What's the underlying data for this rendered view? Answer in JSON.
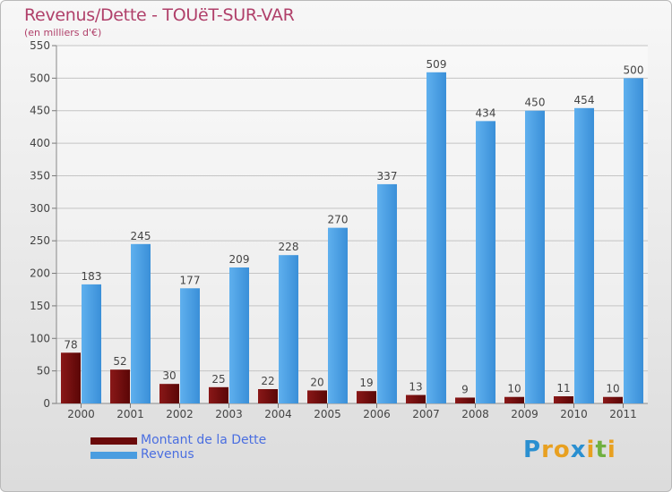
{
  "title": "Revenus/Dette - TOUëT-SUR-VAR",
  "subtitle": "(en milliers d'€)",
  "colors": {
    "dette": "#6b0a0a",
    "revenus": "#4a9de0",
    "title": "#b0406a",
    "legend_text": "#4a6ee0"
  },
  "legend": {
    "items": [
      {
        "label": "Montant de la Dette",
        "color": "#6b0a0a"
      },
      {
        "label": "Revenus",
        "color": "#4a9de0"
      }
    ]
  },
  "logo": {
    "letters": [
      "P",
      "r",
      "o",
      "x",
      "i",
      "t",
      "i"
    ],
    "colors": [
      "#2a8fd0",
      "#e8a020",
      "#e8a020",
      "#2a8fd0",
      "#e8a020",
      "#70b040",
      "#e8a020"
    ]
  },
  "chart_data": {
    "type": "bar",
    "categories": [
      "2000",
      "2001",
      "2002",
      "2003",
      "2004",
      "2005",
      "2006",
      "2007",
      "2008",
      "2009",
      "2010",
      "2011"
    ],
    "series": [
      {
        "name": "Montant de la Dette",
        "values": [
          78,
          52,
          30,
          25,
          22,
          20,
          19,
          13,
          9,
          10,
          11,
          10
        ]
      },
      {
        "name": "Revenus",
        "values": [
          183,
          245,
          177,
          209,
          228,
          270,
          337,
          509,
          434,
          450,
          454,
          500
        ]
      }
    ],
    "ylim": [
      0,
      550
    ],
    "yticks": [
      0,
      50,
      100,
      150,
      200,
      250,
      300,
      350,
      400,
      450,
      500,
      550
    ],
    "grid": true,
    "legend_position": "bottom-left"
  }
}
